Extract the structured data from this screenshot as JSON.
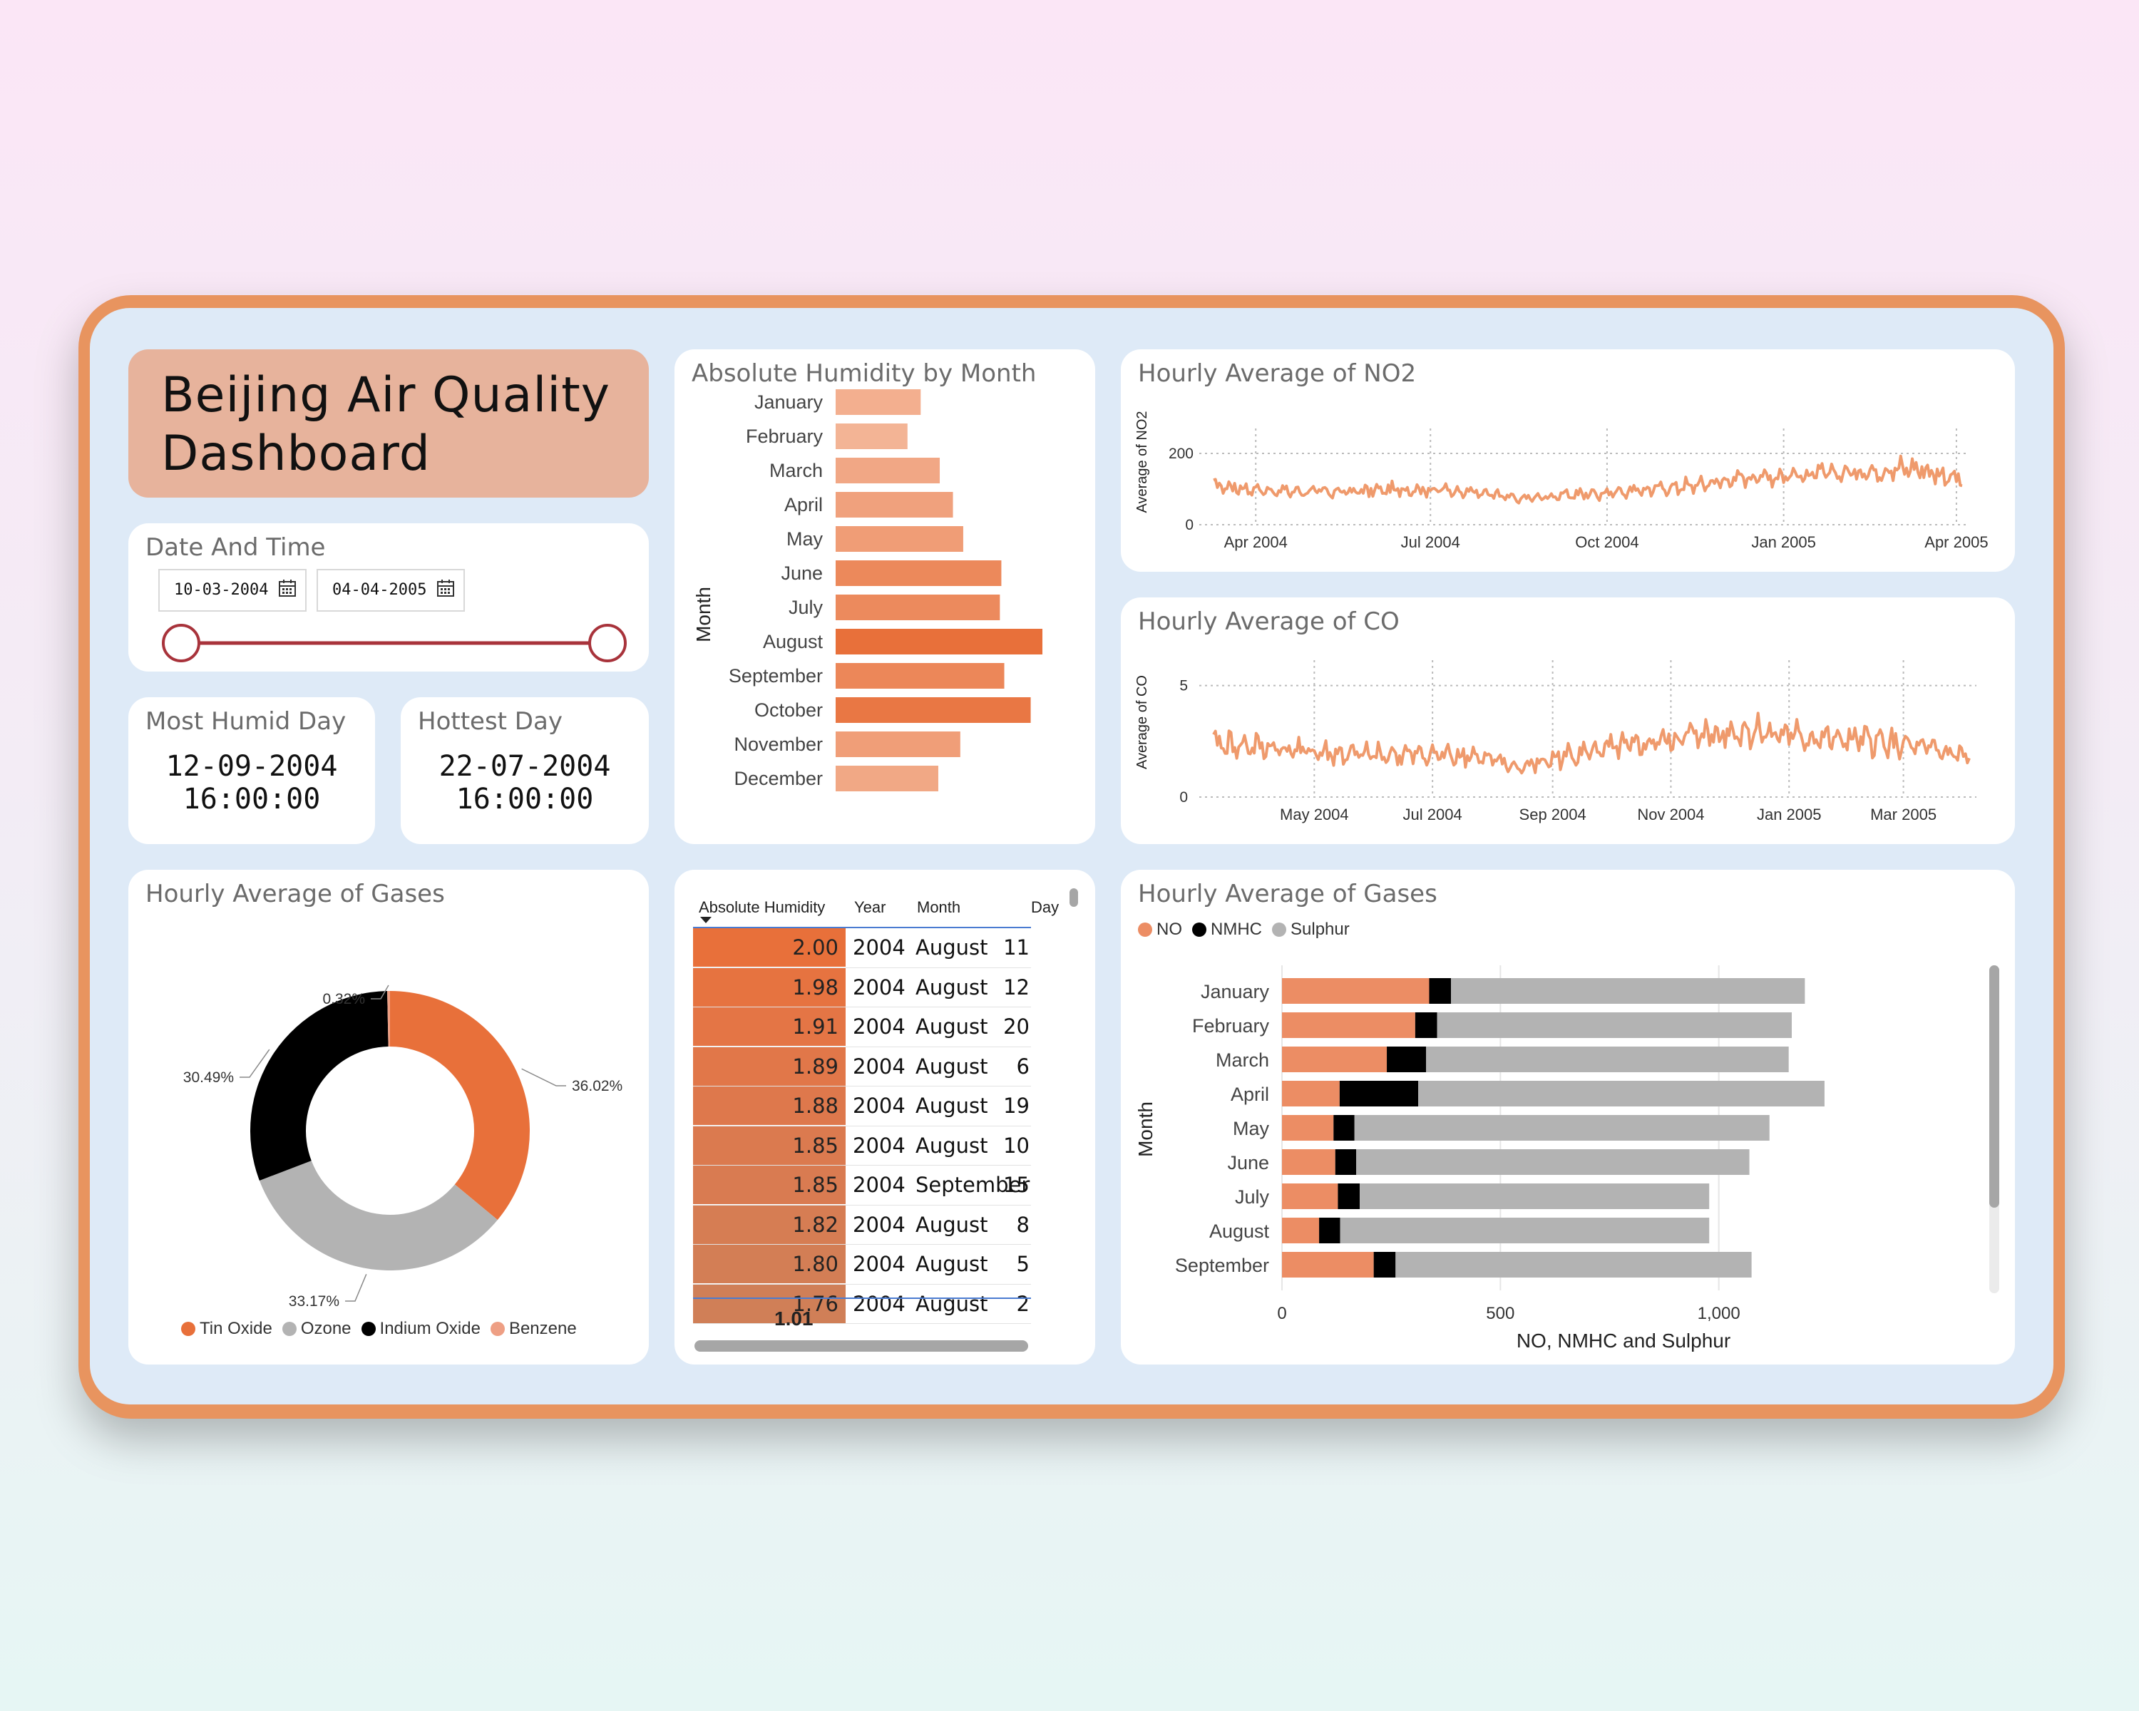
{
  "title": "Beijing Air Quality Dashboard",
  "date_card": {
    "title": "Date And Time",
    "start": "10-03-2004",
    "end": "04-04-2005"
  },
  "humid_card": {
    "title": "Most Humid Day",
    "date": "12-09-2004",
    "time": "16:00:00"
  },
  "hot_card": {
    "title": "Hottest Day",
    "date": "22-07-2004",
    "time": "16:00:00"
  },
  "colors": {
    "accent": "#e8945f",
    "bar_dark": "#e8703a",
    "grey": "#b3b3b3",
    "black": "#000000",
    "line": "#ef9a6c"
  },
  "humidity_chart": {
    "type": "bar",
    "title": "Absolute Humidity by Month",
    "ylabel": "Month",
    "categories": [
      "January",
      "February",
      "March",
      "April",
      "May",
      "June",
      "July",
      "August",
      "September",
      "October",
      "November",
      "December"
    ],
    "values": [
      0.58,
      0.49,
      0.71,
      0.8,
      0.87,
      1.13,
      1.12,
      1.41,
      1.15,
      1.33,
      0.85,
      0.7
    ]
  },
  "no2_chart": {
    "type": "line",
    "title": "Hourly Average of NO2",
    "ylabel": "Average of NO2",
    "y_ticks": [
      "200",
      "0"
    ],
    "x_ticks": [
      "Apr 2004",
      "Jul 2004",
      "Oct 2004",
      "Jan 2005",
      "Apr 2005"
    ],
    "ylim": [
      0,
      230
    ],
    "anchors": [
      [
        "2004-03-10",
        110
      ],
      [
        "2004-04-10",
        95
      ],
      [
        "2004-05-15",
        92
      ],
      [
        "2004-06-20",
        100
      ],
      [
        "2004-07-20",
        95
      ],
      [
        "2004-08-15",
        72
      ],
      [
        "2004-09-15",
        85
      ],
      [
        "2004-10-15",
        95
      ],
      [
        "2004-11-15",
        110
      ],
      [
        "2004-12-15",
        135
      ],
      [
        "2005-01-15",
        140
      ],
      [
        "2005-02-15",
        150
      ],
      [
        "2005-03-10",
        160
      ],
      [
        "2005-04-04",
        125
      ]
    ]
  },
  "co_chart": {
    "type": "line",
    "title": "Hourly Average of CO",
    "ylabel": "Average of CO",
    "y_ticks": [
      "5",
      "0"
    ],
    "x_ticks": [
      "May 2004",
      "Jul 2004",
      "Sep 2004",
      "Nov 2004",
      "Jan 2005",
      "Mar 2005"
    ],
    "ylim": [
      0,
      5.5
    ],
    "anchors": [
      [
        "2004-03-10",
        2.4
      ],
      [
        "2004-04-10",
        2.2
      ],
      [
        "2004-05-15",
        1.9
      ],
      [
        "2004-06-20",
        1.9
      ],
      [
        "2004-07-20",
        1.9
      ],
      [
        "2004-08-15",
        1.3
      ],
      [
        "2004-09-15",
        2.0
      ],
      [
        "2004-10-15",
        2.3
      ],
      [
        "2004-11-15",
        2.8
      ],
      [
        "2004-12-15",
        3.0
      ],
      [
        "2005-01-15",
        2.6
      ],
      [
        "2005-02-15",
        2.5
      ],
      [
        "2005-03-10",
        2.2
      ],
      [
        "2005-04-04",
        1.8
      ]
    ]
  },
  "donut": {
    "type": "pie",
    "title": "Hourly Average of Gases",
    "slices": [
      {
        "name": "Tin Oxide",
        "value": 36.02,
        "label": "36.02%",
        "color": "#e8703a"
      },
      {
        "name": "Ozone",
        "value": 33.17,
        "label": "33.17%",
        "color": "#b3b3b3"
      },
      {
        "name": "Indium Oxide",
        "value": 30.49,
        "label": "30.49%",
        "color": "#000000"
      },
      {
        "name": "Benzene",
        "value": 0.32,
        "label": "0.32%",
        "color": "#ee9f84"
      }
    ]
  },
  "table": {
    "headers": [
      "Absolute Humidity",
      "Year",
      "Month",
      "Day"
    ],
    "rows": [
      [
        "2.00",
        "2004",
        "August",
        "11"
      ],
      [
        "1.98",
        "2004",
        "August",
        "12"
      ],
      [
        "1.91",
        "2004",
        "August",
        "20"
      ],
      [
        "1.89",
        "2004",
        "August",
        "6"
      ],
      [
        "1.88",
        "2004",
        "August",
        "19"
      ],
      [
        "1.85",
        "2004",
        "August",
        "10"
      ],
      [
        "1.85",
        "2004",
        "September",
        "15"
      ],
      [
        "1.82",
        "2004",
        "August",
        "8"
      ],
      [
        "1.80",
        "2004",
        "August",
        "5"
      ],
      [
        "1.76",
        "2004",
        "August",
        "2"
      ]
    ],
    "total": "1.01"
  },
  "stacked_chart": {
    "type": "bar",
    "title": "Hourly Average of Gases",
    "ylabel": "Month",
    "xlabel": "NO, NMHC and Sulphur",
    "x_ticks": [
      "0",
      "500",
      "1,000"
    ],
    "xlim": [
      0,
      1500
    ],
    "categories": [
      "January",
      "February",
      "March",
      "April",
      "May",
      "June",
      "July",
      "August",
      "September"
    ],
    "series": [
      {
        "name": "NO",
        "color": "#ec8d64",
        "values": [
          337,
          305,
          240,
          132,
          118,
          122,
          128,
          85,
          210
        ]
      },
      {
        "name": "NMHC",
        "color": "#000000",
        "values": [
          50,
          50,
          90,
          180,
          48,
          48,
          50,
          48,
          50
        ]
      },
      {
        "name": "Sulphur",
        "color": "#b3b3b3",
        "values": [
          810,
          812,
          830,
          930,
          950,
          900,
          800,
          845,
          815
        ]
      }
    ]
  }
}
